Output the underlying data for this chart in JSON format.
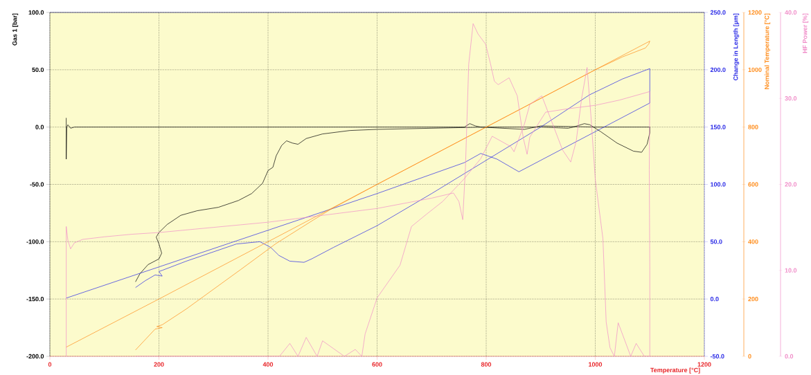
{
  "chart_data": [
    {
      "type": "line",
      "xlabel": "Temperature [°C]",
      "ylabel": "Gas 1 [bar]",
      "y2label": "Change in Length [µm]",
      "y3label": "Nominal Temperature [°C]",
      "xlim": [
        0,
        1200
      ],
      "xticks": [
        0,
        200,
        400,
        600,
        800,
        1000,
        1200
      ],
      "ylim": [
        -200,
        100
      ],
      "yticks": [
        {
          "value": -200,
          "label": "-200.0"
        },
        {
          "value": -150,
          "label": "-150.0"
        },
        {
          "value": -100,
          "label": "-100.0"
        },
        {
          "value": -50,
          "label": "-50.0"
        },
        {
          "value": 0,
          "label": "0.0"
        },
        {
          "value": 50,
          "label": "50.0"
        },
        {
          "value": 100,
          "label": "100.0"
        }
      ],
      "y2lim": [
        -50,
        250
      ],
      "y2ticks": [
        {
          "value": -50,
          "label": "-50.0"
        },
        {
          "value": 0,
          "label": "0.0"
        },
        {
          "value": 50,
          "label": "50.0"
        },
        {
          "value": 100,
          "label": "100.0"
        },
        {
          "value": 150,
          "label": "150.0"
        },
        {
          "value": 200,
          "label": "200.0"
        },
        {
          "value": 250,
          "label": "250.0"
        }
      ],
      "y3lim": [
        0,
        1200
      ],
      "y3ticks": [
        0,
        200,
        400,
        600,
        800,
        1000,
        1200
      ],
      "grid": true,
      "series": [
        {
          "color": "#000000",
          "x": [
            30,
            30,
            31,
            33,
            38,
            45,
            760,
            770,
            780,
            790,
            870,
            900,
            1000,
            1100,
            1100,
            1095,
            1085,
            1070,
            1040,
            1010,
            990,
            980,
            960,
            950,
            900,
            800,
            700,
            600,
            550,
            500,
            470,
            455,
            445,
            434,
            425,
            415,
            409,
            400,
            390,
            370,
            346,
            309,
            270,
            240,
            215,
            200,
            195,
            200,
            205,
            200,
            180,
            165,
            157
          ],
          "values": [
            8,
            -28,
            0,
            2,
            -1,
            0,
            0,
            3,
            1,
            0,
            -2,
            1,
            0,
            0,
            -5,
            -15,
            -22,
            -21,
            -14,
            -4,
            2,
            3,
            0,
            -1,
            0,
            0,
            -1,
            -2,
            -3,
            -6,
            -10,
            -15,
            -14,
            -12,
            -16,
            -25,
            -35,
            -38,
            -49,
            -58,
            -64,
            -70,
            -73,
            -77,
            -85,
            -92,
            -96,
            -102,
            -110,
            -115,
            -120,
            -128,
            -135
          ]
        },
        {
          "color": "#2828e6",
          "axis": "y2",
          "x": [
            30,
            200,
            400,
            600,
            760,
            790,
            820,
            860,
            900,
            1000,
            1100,
            1100,
            1050,
            989,
            900,
            800,
            700,
            600,
            520,
            480,
            466,
            440,
            420,
            405,
            385,
            342,
            250,
            206,
            200,
            206,
            193,
            175,
            157
          ],
          "values": [
            0.8,
            28,
            60,
            92,
            119,
            127,
            122,
            111,
            121,
            146,
            171,
            201,
            192,
            178,
            150,
            121,
            92,
            64,
            45,
            35,
            32,
            33,
            38,
            45,
            50,
            48,
            33,
            25,
            24,
            20,
            21,
            16,
            10
          ]
        },
        {
          "color": "#ff8c1a",
          "axis": "y3",
          "x": [
            30,
            200,
            400,
            600,
            800,
            1000,
            1100,
            1098,
            1092,
            1050,
            1000,
            800,
            600,
            514,
            480,
            440,
            415,
            400,
            350,
            300,
            250,
            206,
            196,
            206,
            193,
            157
          ],
          "values": [
            32,
            200,
            400,
            600,
            800,
            1000,
            1100,
            1090,
            1076,
            1045,
            1000,
            800,
            600,
            512,
            472,
            424,
            394,
            373,
            303,
            234,
            165,
            110,
            104,
            100,
            95,
            22
          ]
        }
      ]
    },
    {
      "type": "line",
      "ylabel": "HF Power [%]",
      "xlim": [
        0,
        1200
      ],
      "ylim": [
        0,
        40
      ],
      "yticks": [
        {
          "value": 0,
          "label": "0.0"
        },
        {
          "value": 10,
          "label": "10.0"
        },
        {
          "value": 20,
          "label": "20.0"
        },
        {
          "value": 30,
          "label": "30.0"
        },
        {
          "value": 40,
          "label": "40.0"
        }
      ],
      "tick_labels": "y",
      "series": [
        {
          "color": "#f08cc8",
          "x": [
            30,
            30,
            33,
            38,
            45,
            60,
            100,
            150,
            200,
            250,
            300,
            350,
            400,
            450,
            500,
            550,
            600,
            650,
            700,
            740,
            750,
            757,
            762,
            768,
            776,
            785,
            799,
            808,
            815,
            822,
            842,
            857,
            868,
            875,
            880,
            909,
            950,
            1000,
            1044,
            1100,
            1099,
            1100,
            1100,
            1090,
            1075,
            1065,
            1042,
            1035,
            1027,
            1020,
            1014,
            1000,
            992,
            985,
            975,
            965,
            955,
            940,
            925,
            902,
            880,
            870,
            851,
            845,
            811,
            790,
            759,
            720,
            690,
            663,
            642,
            600,
            578,
            572,
            560,
            540,
            500,
            490,
            470,
            455,
            440,
            421,
            157
          ],
          "values": [
            0,
            15.1,
            13.5,
            12.5,
            13.2,
            13.6,
            13.9,
            14.2,
            14.4,
            14.7,
            15,
            15.3,
            15.6,
            16,
            16.4,
            16.8,
            17.2,
            17.8,
            18.4,
            19,
            18,
            15.9,
            22,
            34,
            38.7,
            37.5,
            36.3,
            34,
            32,
            31.6,
            32.4,
            30.3,
            25.4,
            23.5,
            25.5,
            28.4,
            28.8,
            29.2,
            29.8,
            30.8,
            21.7,
            10,
            0,
            0,
            1.5,
            0,
            3.9,
            0,
            1,
            4,
            13.7,
            20.6,
            28,
            33.6,
            30,
            25,
            22.6,
            24,
            26.5,
            30.3,
            29.3,
            27,
            23.8,
            24.4,
            25.6,
            23,
            20.6,
            18,
            16.5,
            15.1,
            10.6,
            6.8,
            2.6,
            0,
            0.8,
            0,
            1.8,
            0,
            2.2,
            0,
            1.5,
            0,
            0
          ]
        }
      ]
    }
  ]
}
